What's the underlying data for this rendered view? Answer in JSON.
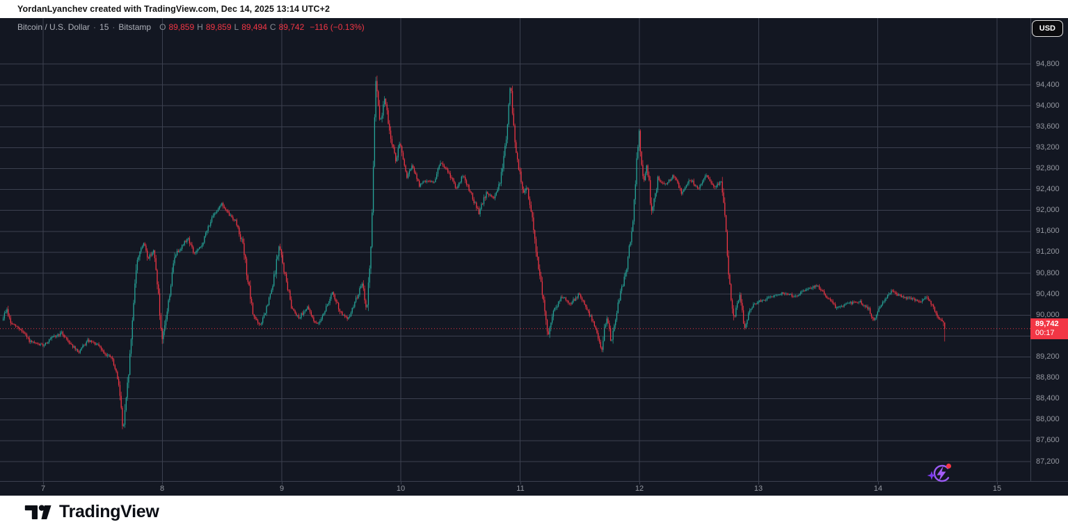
{
  "attribution_bar": {
    "text": "YordanLyanchev created with TradingView.com, Dec 14, 2025 13:14 UTC+2"
  },
  "header": {
    "symbol": "Bitcoin / U.S. Dollar",
    "separator": "·",
    "interval": "15",
    "exchange": "Bitstamp",
    "ohlc_items": [
      {
        "label": "O",
        "value": "89,859"
      },
      {
        "label": "H",
        "value": "89,859"
      },
      {
        "label": "L",
        "value": "89,494"
      },
      {
        "label": "C",
        "value": "89,742"
      }
    ],
    "change": "−116 (−0.13%)",
    "currency_button": "USD"
  },
  "price_axis_label": {
    "price": "89,742",
    "countdown": "00:17"
  },
  "footer": {
    "brand": "TradingView"
  },
  "chart_data": {
    "type": "candlestick",
    "title": "Bitcoin / U.S. Dollar",
    "exchange": "Bitstamp",
    "interval_minutes": 15,
    "current_price": 89742,
    "last_candle": {
      "open": 89859,
      "high": 89859,
      "low": 89494,
      "close": 89742
    },
    "y_axis": {
      "min": 87200,
      "max": 94800,
      "step": 400,
      "side": "right"
    },
    "x_axis": {
      "labels": [
        "7",
        "8",
        "9",
        "10",
        "11",
        "12",
        "13",
        "14",
        "15"
      ],
      "unit": "day of December 2025"
    },
    "grid": true,
    "legend_position": "top-left",
    "colors": {
      "up": "#26a69a",
      "down": "#f23645",
      "grid": "#3c4150",
      "background": "#131722",
      "axis_text": "#9598a1",
      "price_line": "#f23645",
      "accent_purple": "#9c5bf5"
    },
    "candles_per_day": 96,
    "start_day": -0.34,
    "end_day": 7.565,
    "path_keypoints": [
      [
        -0.34,
        89900
      ],
      [
        -0.3,
        90120
      ],
      [
        -0.27,
        89850
      ],
      [
        -0.18,
        89720
      ],
      [
        -0.1,
        89480
      ],
      [
        0.0,
        89420
      ],
      [
        0.08,
        89560
      ],
      [
        0.16,
        89660
      ],
      [
        0.24,
        89440
      ],
      [
        0.3,
        89280
      ],
      [
        0.38,
        89510
      ],
      [
        0.46,
        89430
      ],
      [
        0.52,
        89270
      ],
      [
        0.58,
        89180
      ],
      [
        0.64,
        88700
      ],
      [
        0.675,
        87780
      ],
      [
        0.7,
        88300
      ],
      [
        0.74,
        89400
      ],
      [
        0.78,
        90850
      ],
      [
        0.82,
        91280
      ],
      [
        0.855,
        91360
      ],
      [
        0.885,
        91080
      ],
      [
        0.93,
        91240
      ],
      [
        0.965,
        90600
      ],
      [
        1.0,
        89420
      ],
      [
        1.05,
        90150
      ],
      [
        1.11,
        91150
      ],
      [
        1.17,
        91320
      ],
      [
        1.22,
        91480
      ],
      [
        1.27,
        91170
      ],
      [
        1.33,
        91300
      ],
      [
        1.4,
        91750
      ],
      [
        1.46,
        92000
      ],
      [
        1.5,
        92140
      ],
      [
        1.55,
        91950
      ],
      [
        1.62,
        91800
      ],
      [
        1.68,
        91350
      ],
      [
        1.72,
        90700
      ],
      [
        1.76,
        90050
      ],
      [
        1.82,
        89780
      ],
      [
        1.87,
        90050
      ],
      [
        1.93,
        90550
      ],
      [
        1.985,
        91330
      ],
      [
        2.03,
        90800
      ],
      [
        2.09,
        90150
      ],
      [
        2.15,
        89950
      ],
      [
        2.22,
        90150
      ],
      [
        2.3,
        89800
      ],
      [
        2.36,
        90050
      ],
      [
        2.43,
        90420
      ],
      [
        2.5,
        90050
      ],
      [
        2.56,
        89900
      ],
      [
        2.62,
        90250
      ],
      [
        2.68,
        90600
      ],
      [
        2.72,
        90100
      ],
      [
        2.76,
        91500
      ],
      [
        2.795,
        94580
      ],
      [
        2.83,
        93650
      ],
      [
        2.87,
        94150
      ],
      [
        2.92,
        93400
      ],
      [
        2.96,
        92950
      ],
      [
        3.0,
        93280
      ],
      [
        3.05,
        92620
      ],
      [
        3.1,
        92850
      ],
      [
        3.16,
        92480
      ],
      [
        3.22,
        92580
      ],
      [
        3.28,
        92530
      ],
      [
        3.34,
        92920
      ],
      [
        3.41,
        92700
      ],
      [
        3.47,
        92420
      ],
      [
        3.53,
        92680
      ],
      [
        3.6,
        92280
      ],
      [
        3.66,
        91950
      ],
      [
        3.72,
        92330
      ],
      [
        3.78,
        92230
      ],
      [
        3.84,
        92550
      ],
      [
        3.89,
        93400
      ],
      [
        3.925,
        94440
      ],
      [
        3.96,
        93300
      ],
      [
        4.0,
        92750
      ],
      [
        4.03,
        92280
      ],
      [
        4.06,
        92480
      ],
      [
        4.11,
        91850
      ],
      [
        4.16,
        90900
      ],
      [
        4.21,
        90150
      ],
      [
        4.24,
        89620
      ],
      [
        4.29,
        90100
      ],
      [
        4.36,
        90360
      ],
      [
        4.43,
        90220
      ],
      [
        4.5,
        90400
      ],
      [
        4.57,
        90100
      ],
      [
        4.63,
        89800
      ],
      [
        4.69,
        89350
      ],
      [
        4.73,
        89980
      ],
      [
        4.77,
        89480
      ],
      [
        4.83,
        90250
      ],
      [
        4.89,
        90800
      ],
      [
        4.95,
        91700
      ],
      [
        5.0,
        93560
      ],
      [
        5.04,
        92500
      ],
      [
        5.07,
        92880
      ],
      [
        5.11,
        91950
      ],
      [
        5.16,
        92580
      ],
      [
        5.23,
        92480
      ],
      [
        5.29,
        92680
      ],
      [
        5.36,
        92330
      ],
      [
        5.43,
        92600
      ],
      [
        5.5,
        92420
      ],
      [
        5.57,
        92680
      ],
      [
        5.64,
        92420
      ],
      [
        5.69,
        92580
      ],
      [
        5.725,
        91900
      ],
      [
        5.755,
        90650
      ],
      [
        5.8,
        89950
      ],
      [
        5.85,
        90380
      ],
      [
        5.885,
        89750
      ],
      [
        5.94,
        90150
      ],
      [
        6.0,
        90260
      ],
      [
        6.1,
        90330
      ],
      [
        6.2,
        90420
      ],
      [
        6.31,
        90360
      ],
      [
        6.41,
        90480
      ],
      [
        6.5,
        90560
      ],
      [
        6.58,
        90340
      ],
      [
        6.66,
        90120
      ],
      [
        6.75,
        90220
      ],
      [
        6.85,
        90260
      ],
      [
        6.93,
        90120
      ],
      [
        6.97,
        89870
      ],
      [
        7.05,
        90280
      ],
      [
        7.12,
        90460
      ],
      [
        7.2,
        90360
      ],
      [
        7.29,
        90300
      ],
      [
        7.36,
        90260
      ],
      [
        7.41,
        90360
      ],
      [
        7.46,
        90180
      ],
      [
        7.51,
        89950
      ],
      [
        7.545,
        89860
      ],
      [
        7.565,
        89742
      ]
    ]
  }
}
